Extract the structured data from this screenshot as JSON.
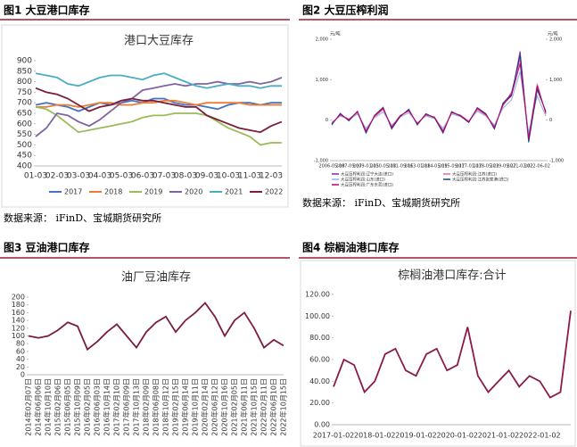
{
  "chart_data": [
    {
      "type": "line",
      "figure": "图1  大豆港口库存",
      "title": "港口大豆库存",
      "source": "数据来源：  iFinD、宝城期货研究所",
      "categories": [
        "01-03",
        null,
        "02-03",
        null,
        "03-03",
        null,
        "04-03",
        null,
        "05-03",
        null,
        "06-03",
        null,
        "07-03",
        null,
        "08-03",
        null,
        "09-03",
        null,
        "10-03",
        null,
        "11-03",
        null,
        "12-03",
        null
      ],
      "ylim": [
        400,
        900
      ],
      "yticks": [
        400,
        450,
        500,
        550,
        600,
        650,
        700,
        750,
        800,
        850,
        900
      ],
      "series": [
        {
          "name": "2017",
          "color": "#4472c4",
          "values": [
            690,
            700,
            690,
            680,
            660,
            680,
            700,
            690,
            700,
            710,
            700,
            720,
            720,
            700,
            690,
            690,
            680,
            670,
            690,
            700,
            700,
            690,
            700,
            700
          ]
        },
        {
          "name": "2018",
          "color": "#ed7d31",
          "values": [
            680,
            680,
            690,
            690,
            680,
            690,
            700,
            700,
            690,
            690,
            700,
            700,
            710,
            710,
            700,
            690,
            700,
            700,
            700,
            700,
            690,
            690,
            690,
            690
          ]
        },
        {
          "name": "2019",
          "color": "#9bbb59",
          "values": [
            680,
            670,
            640,
            600,
            560,
            570,
            580,
            590,
            600,
            610,
            630,
            640,
            640,
            650,
            650,
            650,
            640,
            610,
            580,
            560,
            540,
            500,
            510,
            510
          ]
        },
        {
          "name": "2020",
          "color": "#8064a2",
          "values": [
            540,
            580,
            650,
            640,
            610,
            590,
            620,
            660,
            700,
            720,
            760,
            770,
            780,
            790,
            780,
            790,
            790,
            800,
            790,
            790,
            800,
            790,
            800,
            820
          ]
        },
        {
          "name": "2021",
          "color": "#4bacc6",
          "values": [
            840,
            830,
            820,
            790,
            780,
            800,
            820,
            830,
            830,
            820,
            810,
            830,
            840,
            820,
            800,
            780,
            770,
            780,
            790,
            780,
            780,
            770,
            780,
            780
          ]
        },
        {
          "name": "2022",
          "color": "#7b1e3a",
          "values": [
            770,
            750,
            740,
            720,
            690,
            660,
            680,
            690,
            710,
            720,
            710,
            710,
            700,
            690,
            680,
            680,
            640,
            620,
            600,
            580,
            570,
            560,
            590,
            610
          ]
        }
      ]
    },
    {
      "type": "line",
      "figure": "图2  大豆压榨利润",
      "source": "数据来源：  iFinD、宝城期货研究所",
      "ylabel": "元/吨",
      "y2label": "元/吨",
      "categories": [
        "2006-05-18",
        null,
        "2007-09-17",
        null,
        "2009-01-15",
        null,
        "2010-05-18",
        null,
        "2011-09-16",
        null,
        "2013-01-18",
        null,
        "2014-05-19",
        null,
        "2015-09-17",
        null,
        "2017-01-17",
        null,
        "2018-05-23",
        null,
        "2019-09-27",
        null,
        "2021-02-02",
        null,
        "2022-06-02",
        null
      ],
      "ylim": [
        -1000,
        2000
      ],
      "yticks": [
        {
          "value": -1000,
          "label": "-1,000"
        },
        0,
        {
          "value": 1000,
          "label": "1,000"
        },
        {
          "value": 2000,
          "label": "2,000"
        }
      ],
      "y2lim": [
        -1000,
        2000
      ],
      "y2ticks": [
        {
          "value": -1000,
          "label": "-1,000"
        },
        0,
        {
          "value": 1000,
          "label": "1,000"
        },
        {
          "value": 2000,
          "label": "2,000"
        }
      ],
      "series": [
        {
          "name": "大豆压榨利润:辽宁大连(进口)",
          "color": "#7030a0",
          "values": [
            -100,
            150,
            0,
            200,
            -300,
            100,
            300,
            -200,
            100,
            250,
            -100,
            150,
            50,
            -300,
            200,
            100,
            -50,
            300,
            150,
            -200,
            400,
            600,
            1700,
            -500,
            800,
            200
          ]
        },
        {
          "name": "大豆压榨利润:江苏(进口)",
          "color": "#e26b9a",
          "values": [
            -80,
            120,
            30,
            180,
            -250,
            80,
            260,
            -150,
            120,
            220,
            -80,
            120,
            80,
            -250,
            180,
            130,
            -20,
            260,
            120,
            -150,
            350,
            700,
            1500,
            -400,
            900,
            150
          ]
        },
        {
          "name": "大豆压榨利润:山东(进口)",
          "color": "#8db4e2",
          "values": [
            -50,
            100,
            20,
            150,
            -200,
            60,
            200,
            -120,
            80,
            180,
            -60,
            100,
            40,
            -200,
            150,
            90,
            -30,
            220,
            100,
            -120,
            300,
            500,
            1200,
            -300,
            600,
            100
          ]
        },
        {
          "name": "大豆压榨利润:江苏张家港(进口)",
          "color": "#1f3f8f",
          "values": [
            -120,
            170,
            -20,
            220,
            -320,
            120,
            320,
            -220,
            90,
            270,
            -120,
            160,
            60,
            -320,
            210,
            110,
            -60,
            310,
            160,
            -220,
            420,
            650,
            1600,
            -550,
            750,
            220
          ]
        },
        {
          "name": "大豆压榨利润:广东东莞(进口)",
          "color": "#c0006a",
          "values": [
            -90,
            140,
            10,
            210,
            -280,
            110,
            290,
            -180,
            110,
            240,
            -90,
            140,
            70,
            -280,
            190,
            120,
            -40,
            290,
            140,
            -180,
            380,
            620,
            1400,
            -450,
            850,
            180
          ]
        }
      ]
    },
    {
      "type": "line",
      "figure": "图3  豆油港口库存",
      "title": "油厂豆油库存",
      "categories": [
        "2014年02月07日",
        "2014年06月06日",
        "2014年10月10日",
        "2015年02月06日",
        "2015年06月05日",
        "2015年10月09日",
        "2016年02月05日",
        "2016年06月03日",
        "2016年10月14日",
        "2017年02月10日",
        "2017年06月09日",
        "2017年10月13日",
        "2018年02月09日",
        "2018年06月08日",
        "2018年10月12日",
        "2019年02月15日",
        "2019年06月14日",
        "2019年10月11日",
        "2020年02月14日",
        "2020年06月12日",
        "2020年10月16日",
        "2021年02月05日",
        "2021年06月11日",
        "2021年10月15日",
        "2022年02月11日",
        "2022年06月10日",
        "2022年10月15日"
      ],
      "ylim": [
        0,
        200
      ],
      "yticks": [
        0,
        20,
        40,
        60,
        80,
        100,
        120,
        140,
        160,
        180,
        200
      ],
      "series": [
        {
          "name": "油厂豆油库存",
          "color": "#7b1e3a",
          "values": [
            100,
            95,
            100,
            115,
            135,
            125,
            65,
            85,
            110,
            130,
            100,
            70,
            110,
            135,
            150,
            110,
            140,
            160,
            185,
            150,
            100,
            140,
            160,
            120,
            70,
            90,
            75
          ]
        }
      ]
    },
    {
      "type": "line",
      "figure": "图4  棕榈油港口库存",
      "title": "棕榈油港口库存:合计",
      "categories": [
        "2017-01-02",
        null,
        null,
        null,
        "2018-01-02",
        null,
        null,
        null,
        "2019-01-02",
        null,
        null,
        null,
        "2020-01-02",
        null,
        null,
        null,
        "2021-01-02",
        null,
        null,
        null,
        "2022-01-02",
        null,
        null,
        null
      ],
      "ylim": [
        0,
        120
      ],
      "yticks": [
        {
          "value": 0,
          "label": "0.00"
        },
        {
          "value": 20,
          "label": "20.00"
        },
        {
          "value": 40,
          "label": "40.00"
        },
        {
          "value": 60,
          "label": "60.00"
        },
        {
          "value": 80,
          "label": "80.00"
        },
        {
          "value": 100,
          "label": "100.00"
        },
        {
          "value": 120,
          "label": "120.00"
        }
      ],
      "series": [
        {
          "name": "棕榈油港口库存:合计",
          "color": "#8b1a4a",
          "values": [
            35,
            60,
            55,
            30,
            40,
            65,
            70,
            50,
            45,
            65,
            70,
            50,
            55,
            90,
            45,
            30,
            40,
            50,
            35,
            45,
            40,
            25,
            30,
            105
          ]
        }
      ]
    }
  ]
}
